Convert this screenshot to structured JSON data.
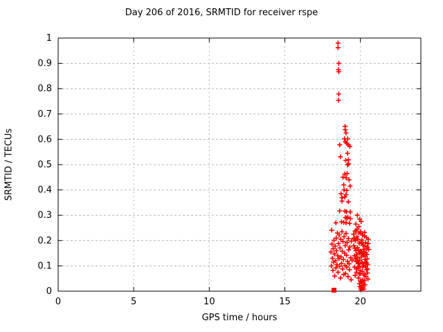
{
  "figure": {
    "title": "Day 206 of 2016, SRMTID for receiver rspe",
    "xlabel": "GPS time / hours",
    "ylabel": "SRMTID / TECUs"
  },
  "colors": {
    "marker": "#ff0000",
    "grid": "#b4b4b4",
    "axis": "#000000",
    "background": "#ffffff",
    "text": "#000000"
  },
  "chart_data": {
    "type": "scatter",
    "title": "Day 206 of 2016, SRMTID for receiver rspe",
    "xlabel": "GPS time / hours",
    "ylabel": "SRMTID / TECUs",
    "xlim": [
      0,
      24
    ],
    "ylim": [
      0,
      1
    ],
    "xticks": {
      "values": [
        0,
        5,
        10,
        15,
        20
      ],
      "labels": [
        "0",
        "5",
        "10",
        "15",
        "20"
      ]
    },
    "yticks": {
      "values": [
        0,
        0.1,
        0.2,
        0.3,
        0.4,
        0.5,
        0.6,
        0.7,
        0.8,
        0.9,
        1
      ],
      "labels": [
        "0",
        "0.1",
        "0.2",
        "0.3",
        "0.4",
        "0.5",
        "0.6",
        "0.7",
        "0.8",
        "0.9",
        "1"
      ]
    },
    "grid": true,
    "legend": "none",
    "series": [
      {
        "name": "SRMTID",
        "marker": "plus",
        "color": "#ff0000",
        "points": [
          [
            18.52,
            0.98
          ],
          [
            18.52,
            0.962
          ],
          [
            18.57,
            0.9
          ],
          [
            18.55,
            0.875
          ],
          [
            18.57,
            0.867
          ],
          [
            18.57,
            0.779
          ],
          [
            18.55,
            0.754
          ],
          [
            18.99,
            0.651
          ],
          [
            18.99,
            0.638
          ],
          [
            19.05,
            0.625
          ],
          [
            18.95,
            0.602
          ],
          [
            19.16,
            0.602
          ],
          [
            18.63,
            0.578
          ],
          [
            19.0,
            0.59
          ],
          [
            19.1,
            0.585
          ],
          [
            19.2,
            0.578
          ],
          [
            19.3,
            0.572
          ],
          [
            19.15,
            0.545
          ],
          [
            18.68,
            0.531
          ],
          [
            19.03,
            0.517
          ],
          [
            19.2,
            0.519
          ],
          [
            19.15,
            0.499
          ],
          [
            19.22,
            0.503
          ],
          [
            18.97,
            0.463
          ],
          [
            19.12,
            0.465
          ],
          [
            18.85,
            0.45
          ],
          [
            19.06,
            0.448
          ],
          [
            19.25,
            0.44
          ],
          [
            18.9,
            0.42
          ],
          [
            19.32,
            0.415
          ],
          [
            18.92,
            0.4
          ],
          [
            19.1,
            0.398
          ],
          [
            18.72,
            0.385
          ],
          [
            19.05,
            0.381
          ],
          [
            18.78,
            0.369
          ],
          [
            18.97,
            0.372
          ],
          [
            18.78,
            0.356
          ],
          [
            19.2,
            0.353
          ],
          [
            18.63,
            0.317
          ],
          [
            18.98,
            0.316
          ],
          [
            19.08,
            0.314
          ],
          [
            19.33,
            0.313
          ],
          [
            19.0,
            0.291
          ],
          [
            19.1,
            0.289
          ],
          [
            19.17,
            0.292
          ],
          [
            19.33,
            0.287
          ],
          [
            18.38,
            0.27
          ],
          [
            18.75,
            0.274
          ],
          [
            18.9,
            0.272
          ],
          [
            19.05,
            0.27
          ],
          [
            19.28,
            0.268
          ],
          [
            19.8,
            0.3
          ],
          [
            19.95,
            0.285
          ],
          [
            20.05,
            0.275
          ],
          [
            19.7,
            0.265
          ],
          [
            19.9,
            0.255
          ],
          [
            18.05,
            0.155
          ],
          [
            18.08,
            0.1
          ],
          [
            18.1,
            0.241
          ],
          [
            18.12,
            0.186
          ],
          [
            18.15,
            0.13
          ],
          [
            18.18,
            0.082
          ],
          [
            18.2,
            0.168
          ],
          [
            18.22,
            0.115
          ],
          [
            18.25,
            0.201
          ],
          [
            18.28,
            0.147
          ],
          [
            18.3,
            0.06
          ],
          [
            18.33,
            0.178
          ],
          [
            18.35,
            0.12
          ],
          [
            18.38,
            0.092
          ],
          [
            18.4,
            0.21
          ],
          [
            18.42,
            0.16
          ],
          [
            18.45,
            0.105
          ],
          [
            18.48,
            0.23
          ],
          [
            18.5,
            0.14
          ],
          [
            18.52,
            0.075
          ],
          [
            18.55,
            0.188
          ],
          [
            18.58,
            0.128
          ],
          [
            18.6,
            0.222
          ],
          [
            18.62,
            0.098
          ],
          [
            18.65,
            0.171
          ],
          [
            18.68,
            0.052
          ],
          [
            18.7,
            0.205
          ],
          [
            18.72,
            0.135
          ],
          [
            18.75,
            0.11
          ],
          [
            18.78,
            0.235
          ],
          [
            18.8,
            0.158
          ],
          [
            18.82,
            0.088
          ],
          [
            18.85,
            0.196
          ],
          [
            18.88,
            0.125
          ],
          [
            18.9,
            0.066
          ],
          [
            18.92,
            0.215
          ],
          [
            18.95,
            0.15
          ],
          [
            18.98,
            0.102
          ],
          [
            19.0,
            0.18
          ],
          [
            19.02,
            0.07
          ],
          [
            19.05,
            0.228
          ],
          [
            19.08,
            0.142
          ],
          [
            19.1,
            0.095
          ],
          [
            19.12,
            0.192
          ],
          [
            19.15,
            0.118
          ],
          [
            19.18,
            0.058
          ],
          [
            19.2,
            0.208
          ],
          [
            19.22,
            0.163
          ],
          [
            19.25,
            0.108
          ],
          [
            19.28,
            0.085
          ],
          [
            19.3,
            0.175
          ],
          [
            19.35,
            0.132
          ],
          [
            19.38,
            0.045
          ],
          [
            19.4,
            0.198
          ],
          [
            19.45,
            0.122
          ],
          [
            19.55,
            0.225
          ],
          [
            19.57,
            0.18
          ],
          [
            19.6,
            0.14
          ],
          [
            19.62,
            0.095
          ],
          [
            19.65,
            0.238
          ],
          [
            19.67,
            0.2
          ],
          [
            19.7,
            0.16
          ],
          [
            19.72,
            0.118
          ],
          [
            19.75,
            0.075
          ],
          [
            19.77,
            0.215
          ],
          [
            19.8,
            0.172
          ],
          [
            19.82,
            0.132
          ],
          [
            19.85,
            0.092
          ],
          [
            19.87,
            0.052
          ],
          [
            19.9,
            0.23
          ],
          [
            19.92,
            0.19
          ],
          [
            19.95,
            0.15
          ],
          [
            19.97,
            0.11
          ],
          [
            20.0,
            0.07
          ],
          [
            20.02,
            0.235
          ],
          [
            20.05,
            0.195
          ],
          [
            20.07,
            0.155
          ],
          [
            20.1,
            0.115
          ],
          [
            20.12,
            0.078
          ],
          [
            20.15,
            0.222
          ],
          [
            20.17,
            0.182
          ],
          [
            20.2,
            0.142
          ],
          [
            20.22,
            0.102
          ],
          [
            20.25,
            0.062
          ],
          [
            20.27,
            0.218
          ],
          [
            20.3,
            0.178
          ],
          [
            20.32,
            0.138
          ],
          [
            20.35,
            0.098
          ],
          [
            20.37,
            0.058
          ],
          [
            20.4,
            0.212
          ],
          [
            20.42,
            0.168
          ],
          [
            20.45,
            0.128
          ],
          [
            20.47,
            0.088
          ],
          [
            20.5,
            0.048
          ],
          [
            20.52,
            0.205
          ],
          [
            20.55,
            0.165
          ],
          [
            19.93,
            0.03
          ],
          [
            19.97,
            0.018
          ],
          [
            20.0,
            0.04
          ],
          [
            20.03,
            0.012
          ],
          [
            20.07,
            0.035
          ],
          [
            20.1,
            0.022
          ],
          [
            20.13,
            0.045
          ],
          [
            20.17,
            0.015
          ],
          [
            20.2,
            0.032
          ],
          [
            20.23,
            0.008
          ],
          [
            20.27,
            0.042
          ],
          [
            20.3,
            0.025
          ],
          [
            20.05,
            0.005
          ],
          [
            19.58,
            0.21
          ],
          [
            19.63,
            0.17
          ],
          [
            19.68,
            0.128
          ],
          [
            19.73,
            0.088
          ],
          [
            19.78,
            0.245
          ],
          [
            19.83,
            0.205
          ],
          [
            19.88,
            0.162
          ],
          [
            19.93,
            0.122
          ],
          [
            19.98,
            0.082
          ],
          [
            20.03,
            0.228
          ],
          [
            20.08,
            0.188
          ],
          [
            20.13,
            0.148
          ],
          [
            20.18,
            0.108
          ],
          [
            20.23,
            0.068
          ],
          [
            20.28,
            0.232
          ],
          [
            20.33,
            0.192
          ],
          [
            20.36,
            0.152
          ],
          [
            20.41,
            0.112
          ],
          [
            20.46,
            0.072
          ],
          [
            20.51,
            0.188
          ],
          [
            19.6,
            0.205
          ],
          [
            19.7,
            0.238
          ],
          [
            19.8,
            0.118
          ],
          [
            19.9,
            0.098
          ],
          [
            20.0,
            0.158
          ],
          [
            20.1,
            0.202
          ],
          [
            20.2,
            0.165
          ],
          [
            20.3,
            0.125
          ],
          [
            20.4,
            0.085
          ],
          [
            20.45,
            0.175
          ],
          [
            19.65,
            0.062
          ],
          [
            19.75,
            0.145
          ],
          [
            19.85,
            0.108
          ],
          [
            19.95,
            0.068
          ],
          [
            20.05,
            0.135
          ],
          [
            20.15,
            0.095
          ],
          [
            20.25,
            0.155
          ],
          [
            20.35,
            0.115
          ],
          [
            20.42,
            0.145
          ],
          [
            20.48,
            0.105
          ]
        ]
      },
      {
        "name": "zero-marker",
        "marker": "filled-square",
        "color": "#ff0000",
        "points": [
          [
            18.25,
            0.004
          ]
        ]
      }
    ]
  }
}
